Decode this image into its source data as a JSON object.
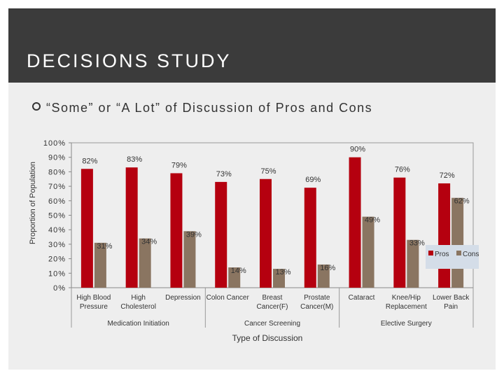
{
  "slide": {
    "title": "DECISIONS STUDY"
  },
  "colors": {
    "pros": "#b5000f",
    "cons": "#8a7561",
    "title_band": "#3b3b3b"
  },
  "chart_data": {
    "type": "bar",
    "title": "“Some” or “A Lot” of Discussion of Pros and Cons",
    "xlabel": "Type of Discussion",
    "ylabel": "Proportion of Population",
    "ylim": [
      0,
      100
    ],
    "yticks": [
      "0%",
      "10%",
      "20%",
      "30%",
      "40%",
      "50%",
      "60%",
      "70%",
      "80%",
      "90%",
      "100%"
    ],
    "grid": false,
    "legend_position": "right",
    "categories": [
      [
        "High Blood",
        "Pressure"
      ],
      [
        "High",
        "Cholesterol"
      ],
      [
        "Depression"
      ],
      [
        "Colon Cancer"
      ],
      [
        "Breast",
        "Cancer(F)"
      ],
      [
        "Prostate",
        "Cancer(M)"
      ],
      [
        "Cataract"
      ],
      [
        "Knee/Hip",
        "Replacement"
      ],
      [
        "Lower Back",
        "Pain"
      ]
    ],
    "groups": [
      {
        "label": "Medication Initiation",
        "count": 3
      },
      {
        "label": "Cancer Screening",
        "count": 3
      },
      {
        "label": "Elective Surgery",
        "count": 3
      }
    ],
    "series": [
      {
        "name": "Pros",
        "values": [
          82,
          83,
          79,
          73,
          75,
          69,
          90,
          76,
          72
        ],
        "labels": [
          "82%",
          "83%",
          "79%",
          "73%",
          "75%",
          "69%",
          "90%",
          "76%",
          "72%"
        ]
      },
      {
        "name": "Cons",
        "values": [
          31,
          34,
          39,
          14,
          13,
          16,
          49,
          33,
          62
        ],
        "labels": [
          "31%",
          "34%",
          "39%",
          "14%",
          "13%",
          "16%",
          "49%",
          "33%",
          "62%"
        ]
      }
    ]
  }
}
